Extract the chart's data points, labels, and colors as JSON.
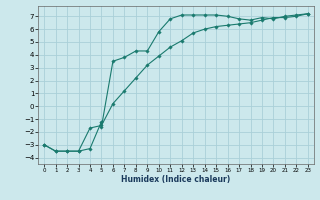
{
  "xlabel": "Humidex (Indice chaleur)",
  "ylabel": "",
  "background_color": "#cce8ec",
  "grid_color": "#aad0d8",
  "line_color": "#1a7a6e",
  "xlim": [
    -0.5,
    23.5
  ],
  "ylim": [
    -4.5,
    7.8
  ],
  "xticks": [
    0,
    1,
    2,
    3,
    4,
    5,
    6,
    7,
    8,
    9,
    10,
    11,
    12,
    13,
    14,
    15,
    16,
    17,
    18,
    19,
    20,
    21,
    22,
    23
  ],
  "yticks": [
    -4,
    -3,
    -2,
    -1,
    0,
    1,
    2,
    3,
    4,
    5,
    6,
    7
  ],
  "curve1_x": [
    0,
    1,
    2,
    3,
    4,
    5,
    5,
    6,
    7,
    8,
    9,
    10,
    11,
    12,
    13,
    14,
    15,
    16,
    17,
    18,
    19,
    20,
    21,
    22,
    23
  ],
  "curve1_y": [
    -3.0,
    -3.5,
    -3.5,
    -3.5,
    -3.3,
    -1.2,
    -1.6,
    3.5,
    3.8,
    4.3,
    4.3,
    5.8,
    6.8,
    7.1,
    7.1,
    7.1,
    7.1,
    7.0,
    6.8,
    6.7,
    6.9,
    6.8,
    7.0,
    7.1,
    7.2
  ],
  "curve2_x": [
    0,
    1,
    2,
    3,
    4,
    5,
    6,
    7,
    8,
    9,
    10,
    11,
    12,
    13,
    14,
    15,
    16,
    17,
    18,
    19,
    20,
    21,
    22,
    23
  ],
  "curve2_y": [
    -3.0,
    -3.5,
    -3.5,
    -3.5,
    -1.7,
    -1.5,
    0.2,
    1.2,
    2.2,
    3.2,
    3.9,
    4.6,
    5.1,
    5.7,
    6.0,
    6.2,
    6.3,
    6.4,
    6.5,
    6.7,
    6.9,
    6.9,
    7.0,
    7.2
  ]
}
